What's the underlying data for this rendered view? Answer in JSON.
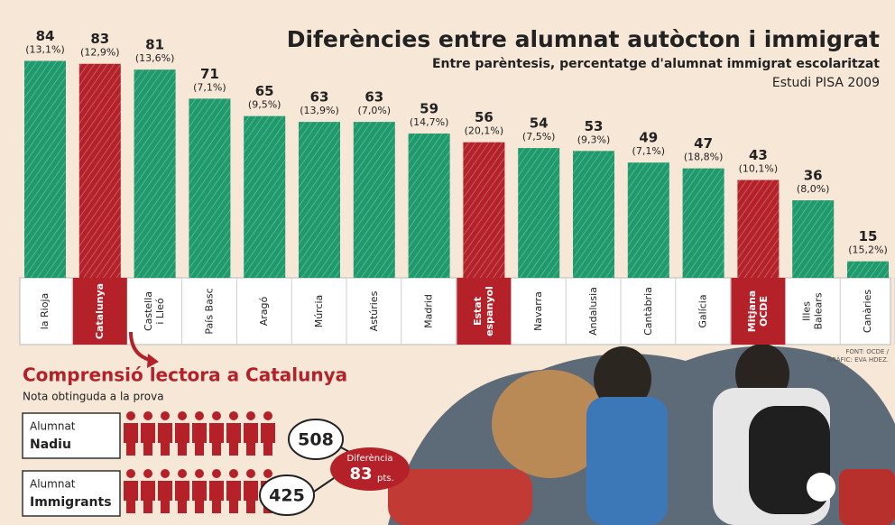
{
  "chart_data": {
    "type": "bar",
    "title": "Diferències entre alumnat autòcton i immigrat",
    "subtitle": "Entre parèntesis, percentatge d'alumnat immigrat escolaritzat",
    "note": "Estudi PISA 2009",
    "categories": [
      [
        "la Rioja"
      ],
      [
        "Catalunya"
      ],
      [
        "Castella",
        "i Lleó"
      ],
      [
        "País Basc"
      ],
      [
        "Aragó"
      ],
      [
        "Múrcia"
      ],
      [
        "Astúries"
      ],
      [
        "Madrid"
      ],
      [
        "Estat",
        "espanyol"
      ],
      [
        "Navarra"
      ],
      [
        "Andalusia"
      ],
      [
        "Cantàbria"
      ],
      [
        "Galícia"
      ],
      [
        "Mitjana",
        "OCDE"
      ],
      [
        "Illes",
        "Balears"
      ],
      [
        "Canàries"
      ]
    ],
    "values": [
      84,
      83,
      81,
      71,
      65,
      63,
      63,
      59,
      56,
      54,
      53,
      49,
      47,
      43,
      36,
      15
    ],
    "shares": [
      "(13,1%)",
      "(12,9%)",
      "(13,6%)",
      "(7,1%)",
      "(9,5%)",
      "(13,9%)",
      "(7,0%)",
      "(14,7%)",
      "(20,1%)",
      "(7,5%)",
      "(9,3%)",
      "(7,1%)",
      "(18,8%)",
      "(10,1%)",
      "(8,0%)",
      "(15,2%)"
    ],
    "colors": [
      "#1e9a6c",
      "#b42129",
      "#1e9a6c",
      "#1e9a6c",
      "#1e9a6c",
      "#1e9a6c",
      "#1e9a6c",
      "#1e9a6c",
      "#b42129",
      "#1e9a6c",
      "#1e9a6c",
      "#1e9a6c",
      "#1e9a6c",
      "#b42129",
      "#1e9a6c",
      "#1e9a6c"
    ],
    "source": [
      "FONT: OCDE /",
      "GRÀFIC: EVA HDEZ."
    ]
  },
  "inset": {
    "title": "Comprensió lectora a Catalunya",
    "subtitle": "Nota obtinguda a la prova",
    "rows": [
      {
        "label": [
          "Alumnat",
          "Nadiu"
        ],
        "value": 508
      },
      {
        "label": [
          "Alumnat",
          "Immigrants"
        ],
        "value": 425
      }
    ],
    "difference": {
      "label": "Diferència",
      "value": 83,
      "unit": "pts."
    }
  }
}
